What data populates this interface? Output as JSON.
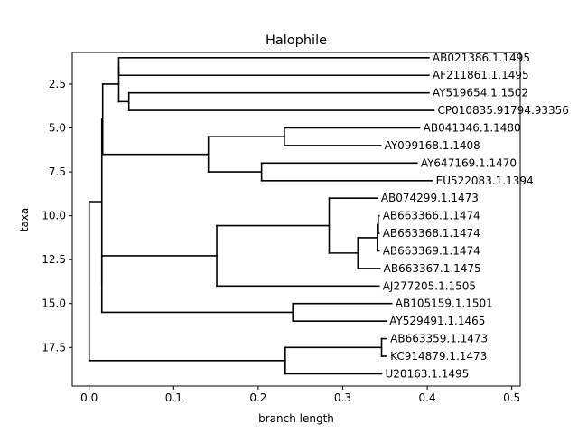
{
  "chart_data": {
    "type": "dendrogram",
    "title": "Halophile",
    "xlabel": "branch length",
    "ylabel": "taxa",
    "xlim": [
      -0.02,
      0.51
    ],
    "ylim": [
      19.7,
      0.7
    ],
    "xticks": [
      0.0,
      0.1,
      0.2,
      0.3,
      0.4,
      0.5
    ],
    "xtick_labels": [
      "0.0",
      "0.1",
      "0.2",
      "0.3",
      "0.4",
      "0.5"
    ],
    "yticks": [
      2.5,
      5.0,
      7.5,
      10.0,
      12.5,
      15.0,
      17.5
    ],
    "ytick_labels": [
      "2.5",
      "5.0",
      "7.5",
      "10.0",
      "12.5",
      "15.0",
      "17.5"
    ],
    "grid": false,
    "tree": {
      "x": 0.0,
      "children": [
        {
          "x": 0.015,
          "children": [
            {
              "x": 0.016,
              "children": [
                {
                  "x": 0.035,
                  "children": [
                    {
                      "x": 0.035,
                      "children": [
                        {
                          "name": "AB021386.1.1495",
                          "x": 0.402,
                          "y": 1
                        },
                        {
                          "name": "AF211861.1.1495",
                          "x": 0.402,
                          "y": 2
                        }
                      ]
                    },
                    {
                      "x": 0.047,
                      "children": [
                        {
                          "name": "AY519654.1.1502",
                          "x": 0.402,
                          "y": 3
                        },
                        {
                          "name": "CP010835.91794.93356",
                          "x": 0.408,
                          "y": 4
                        }
                      ]
                    }
                  ]
                },
                {
                  "x": 0.141,
                  "children": [
                    {
                      "x": 0.231,
                      "children": [
                        {
                          "name": "AB041346.1.1480",
                          "x": 0.391,
                          "y": 5
                        },
                        {
                          "name": "AY099168.1.1408",
                          "x": 0.345,
                          "y": 6
                        }
                      ]
                    },
                    {
                      "x": 0.204,
                      "children": [
                        {
                          "name": "AY647169.1.1470",
                          "x": 0.388,
                          "y": 7
                        },
                        {
                          "name": "EU522083.1.1394",
                          "x": 0.406,
                          "y": 8
                        }
                      ]
                    }
                  ]
                }
              ]
            },
            {
              "x": 0.015,
              "children": [
                {
                  "x": 0.151,
                  "children": [
                    {
                      "x": 0.284,
                      "children": [
                        {
                          "name": "AB074299.1.1473",
                          "x": 0.341,
                          "y": 9
                        },
                        {
                          "x": 0.318,
                          "children": [
                            {
                              "x": 0.341,
                              "children": [
                                {
                                  "x": 0.342,
                                  "children": [
                                    {
                                      "name": "AB663366.1.1474",
                                      "x": 0.343,
                                      "y": 10
                                    },
                                    {
                                      "name": "AB663368.1.1474",
                                      "x": 0.343,
                                      "y": 11
                                    }
                                  ]
                                },
                                {
                                  "name": "AB663369.1.1474",
                                  "x": 0.343,
                                  "y": 12
                                }
                              ]
                            },
                            {
                              "name": "AB663367.1.1475",
                              "x": 0.344,
                              "y": 13
                            }
                          ]
                        }
                      ]
                    },
                    {
                      "name": "AJ277205.1.1505",
                      "x": 0.343,
                      "y": 14
                    }
                  ]
                },
                {
                  "x": 0.241,
                  "children": [
                    {
                      "name": "AB105159.1.1501",
                      "x": 0.358,
                      "y": 15
                    },
                    {
                      "name": "AY529491.1.1465",
                      "x": 0.351,
                      "y": 16
                    }
                  ]
                }
              ]
            }
          ]
        },
        {
          "x": 0.232,
          "children": [
            {
              "x": 0.346,
              "children": [
                {
                  "name": "AB663359.1.1473",
                  "x": 0.352,
                  "y": 17
                },
                {
                  "name": "KC914879.1.1473",
                  "x": 0.352,
                  "y": 18
                }
              ]
            },
            {
              "name": "U20163.1.1495",
              "x": 0.346,
              "y": 19
            }
          ]
        }
      ]
    }
  }
}
